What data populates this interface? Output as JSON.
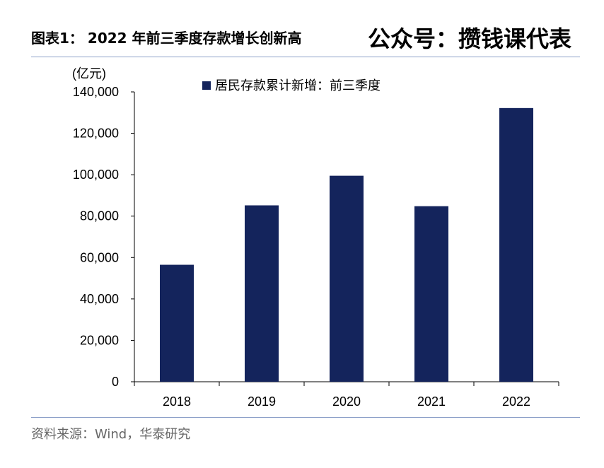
{
  "header": {
    "figure_label": "图表1：",
    "title": "2022 年前三季度存款增长创新高",
    "watermark": "公众号：攒钱课代表"
  },
  "footer": {
    "source": "资料来源：Wind，华泰研究"
  },
  "chart_data": {
    "type": "bar",
    "title": "2022 年前三季度存款增长创新高",
    "unit_label": "(亿元)",
    "categories": [
      "2018",
      "2019",
      "2020",
      "2021",
      "2022"
    ],
    "series": [
      {
        "name": "居民存款累计新增：前三季度",
        "values": [
          56500,
          85200,
          99500,
          84800,
          132200
        ]
      }
    ],
    "ylim": [
      0,
      140000
    ],
    "yticks": [
      0,
      20000,
      40000,
      60000,
      80000,
      100000,
      120000,
      140000
    ],
    "ytick_labels": [
      "0",
      "20,000",
      "40,000",
      "60,000",
      "80,000",
      "100,000",
      "120,000",
      "140,000"
    ],
    "grid": false,
    "legend_position": "top-left",
    "bar_color": "#14245c"
  }
}
